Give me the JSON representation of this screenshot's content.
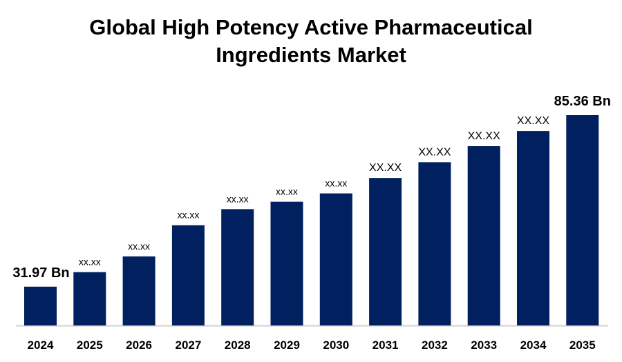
{
  "chart_data": {
    "type": "bar",
    "title_line1": "Global High Potency Active Pharmaceutical",
    "title_line2": "Ingredients Market",
    "categories": [
      "2024",
      "2025",
      "2026",
      "2027",
      "2028",
      "2029",
      "2030",
      "2031",
      "2032",
      "2033",
      "2034",
      "2035"
    ],
    "values": [
      31.97,
      36.5,
      41.4,
      51.1,
      56.1,
      58.4,
      61.0,
      65.8,
      70.7,
      75.7,
      80.4,
      85.36
    ],
    "data_labels": [
      "31.97 Bn",
      "xx.xx",
      "xx.xx",
      "xx.xx",
      "xx.xx",
      "xx.xx",
      "xx.xx",
      "XX.XX",
      "XX.XX",
      "XX.XX",
      "XX.XX",
      "85.36 Bn"
    ],
    "xlabel": "",
    "ylabel": "",
    "ylim": [
      19.9,
      90
    ],
    "grid": false,
    "legend": "none",
    "bar_color": "#002060"
  }
}
